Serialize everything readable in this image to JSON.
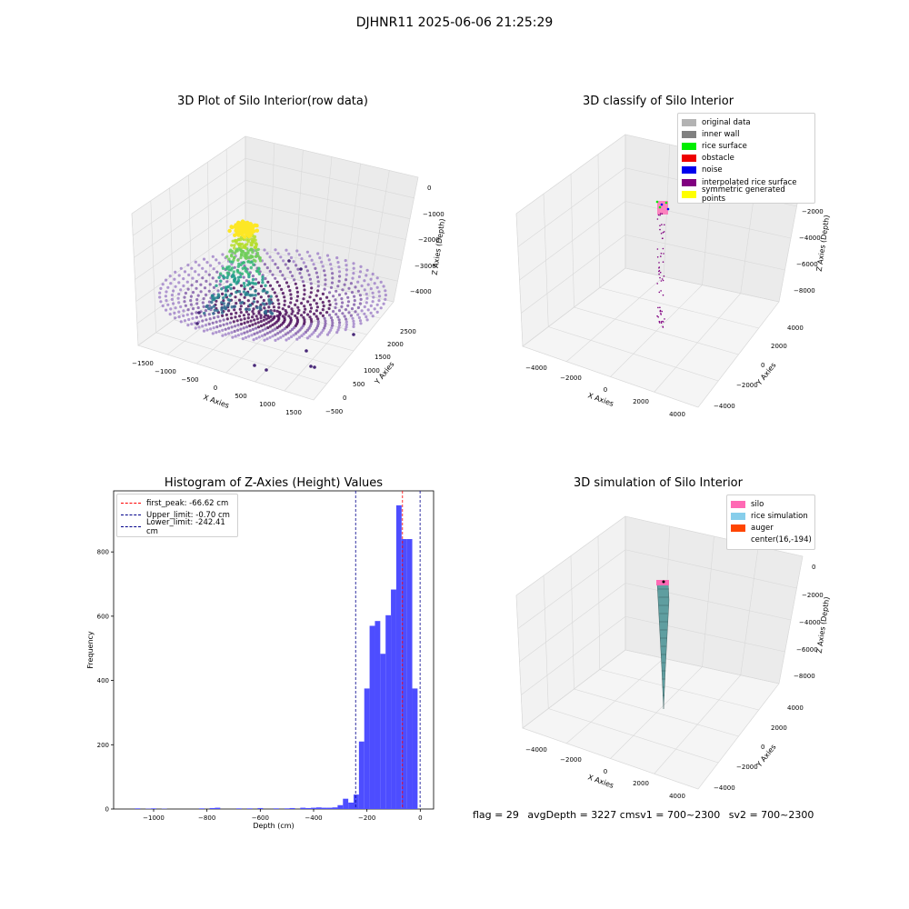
{
  "suptitle": "DJHNR11 2025-06-06 21:25:29",
  "panels": {
    "raw": {
      "title": "3D Plot of Silo Interior(row data)",
      "xlabel": "X Axies",
      "ylabel": "Y Axies",
      "zlabel": "Z Axies (Depth)",
      "xticks": [
        "−1500",
        "−1000",
        "−500",
        "0",
        "500",
        "1000",
        "1500"
      ],
      "yticks": [
        "−500",
        "0",
        "500",
        "1000",
        "1500",
        "2000",
        "2500"
      ],
      "zticks": [
        "0",
        "−1000",
        "−2000",
        "−3000",
        "−4000"
      ]
    },
    "classify": {
      "title": "3D classify of Silo Interior",
      "xlabel": "X Axies",
      "ylabel": "Y Axies",
      "zlabel": "Z Axies (Depth)",
      "xticks": [
        "−4000",
        "−2000",
        "0",
        "2000",
        "4000"
      ],
      "yticks": [
        "−4000",
        "−2000",
        "0",
        "2000",
        "4000"
      ],
      "zticks": [
        "0",
        "−2000",
        "−4000",
        "−6000",
        "−8000"
      ],
      "legend": [
        {
          "label": "original data",
          "color": "#b3b3b3"
        },
        {
          "label": "inner wall",
          "color": "#808080"
        },
        {
          "label": "rice surface",
          "color": "#00ee00"
        },
        {
          "label": "obstacle",
          "color": "#ee0000"
        },
        {
          "label": "noise",
          "color": "#0000ee"
        },
        {
          "label": "interpolated rice surface",
          "color": "#800080"
        },
        {
          "label": "symmetric generated points",
          "color": "#ffff00"
        }
      ]
    },
    "histogram": {
      "title": "Histogram of Z-Axies (Height) Values",
      "xlabel": "Depth (cm)",
      "ylabel": "Frequency",
      "legend": [
        {
          "label": "first_peak: -66.62 cm",
          "color": "#ff0000"
        },
        {
          "label": "Upper_limit: -0.70 cm",
          "color": "#00008b"
        },
        {
          "label": "Lower_limit: -242.41 cm",
          "color": "#00008b"
        }
      ]
    },
    "simulation": {
      "title": "3D simulation of Silo Interior",
      "xlabel": "X Axies",
      "ylabel": "Y Axies",
      "zlabel": "Z Axies (Depth)",
      "xticks": [
        "−4000",
        "−2000",
        "0",
        "2000",
        "4000"
      ],
      "yticks": [
        "−4000",
        "−2000",
        "0",
        "2000",
        "4000"
      ],
      "zticks": [
        "0",
        "−2000",
        "−4000",
        "−6000",
        "−8000"
      ],
      "legend": [
        {
          "label": "silo",
          "color": "#ff69b4"
        },
        {
          "label": "rice simulation",
          "color": "#87ceeb"
        },
        {
          "label": "auger",
          "color": "#ff4500"
        },
        {
          "label": "center(16,-194)",
          "color": ""
        }
      ]
    }
  },
  "footer": {
    "flag": "flag = 29",
    "avg": "avgDepth = 3227 cmsv1 = 700~2300",
    "sv2": "sv2 = 700~2300"
  },
  "chart_data": [
    {
      "type": "scatter",
      "title": "3D Plot of Silo Interior(row data)",
      "xlabel": "X Axies",
      "ylabel": "Y Axies",
      "zlabel": "Z Axies (Depth)",
      "xlim": [
        -1600,
        1700
      ],
      "ylim": [
        -600,
        2700
      ],
      "zlim": [
        -4500,
        0
      ],
      "colormap": "viridis",
      "grid": true
    },
    {
      "type": "scatter",
      "title": "3D classify of Silo Interior",
      "xlabel": "X Axies",
      "ylabel": "Y Axies",
      "zlabel": "Z Axies (Depth)",
      "xlim": [
        -4500,
        4500
      ],
      "ylim": [
        -4500,
        4500
      ],
      "zlim": [
        -9000,
        0
      ],
      "legend_position": "top-right",
      "grid": true
    },
    {
      "type": "bar",
      "title": "Histogram of Z-Axies (Height) Values",
      "xlabel": "Depth (cm)",
      "ylabel": "Frequency",
      "xlim": [
        -1150,
        50
      ],
      "ylim": [
        0,
        990
      ],
      "xticks": [
        -1000,
        -800,
        -600,
        -400,
        -200,
        0
      ],
      "yticks": [
        0,
        200,
        400,
        600,
        800
      ],
      "bin_width": 20,
      "bins": [
        {
          "x": -1060,
          "y": 2
        },
        {
          "x": -1020,
          "y": 1
        },
        {
          "x": -1000,
          "y": 2
        },
        {
          "x": -960,
          "y": 1
        },
        {
          "x": -820,
          "y": 2
        },
        {
          "x": -780,
          "y": 3
        },
        {
          "x": -760,
          "y": 4
        },
        {
          "x": -680,
          "y": 2
        },
        {
          "x": -640,
          "y": 2
        },
        {
          "x": -600,
          "y": 3
        },
        {
          "x": -540,
          "y": 2
        },
        {
          "x": -500,
          "y": 2
        },
        {
          "x": -480,
          "y": 3
        },
        {
          "x": -440,
          "y": 4
        },
        {
          "x": -420,
          "y": 3
        },
        {
          "x": -400,
          "y": 4
        },
        {
          "x": -380,
          "y": 5
        },
        {
          "x": -360,
          "y": 4
        },
        {
          "x": -340,
          "y": 4
        },
        {
          "x": -320,
          "y": 5
        },
        {
          "x": -300,
          "y": 12
        },
        {
          "x": -280,
          "y": 32
        },
        {
          "x": -260,
          "y": 20
        },
        {
          "x": -240,
          "y": 45
        },
        {
          "x": -220,
          "y": 210
        },
        {
          "x": -200,
          "y": 375
        },
        {
          "x": -180,
          "y": 570
        },
        {
          "x": -160,
          "y": 585
        },
        {
          "x": -140,
          "y": 483
        },
        {
          "x": -120,
          "y": 603
        },
        {
          "x": -100,
          "y": 683
        },
        {
          "x": -80,
          "y": 945
        },
        {
          "x": -60,
          "y": 840
        },
        {
          "x": -40,
          "y": 840
        },
        {
          "x": -20,
          "y": 375
        }
      ],
      "vlines": [
        {
          "x": -66.62,
          "label": "first_peak: -66.62 cm",
          "color": "#ff0000"
        },
        {
          "x": -0.7,
          "label": "Upper_limit: -0.70 cm",
          "color": "#00008b"
        },
        {
          "x": -242.41,
          "label": "Lower_limit: -242.41 cm",
          "color": "#00008b"
        }
      ],
      "bar_color": "#4d4dff",
      "legend_position": "top-left"
    },
    {
      "type": "area",
      "title": "3D simulation of Silo Interior",
      "xlabel": "X Axies",
      "ylabel": "Y Axies",
      "zlabel": "Z Axies (Depth)",
      "xlim": [
        -4500,
        4500
      ],
      "ylim": [
        -4500,
        4500
      ],
      "zlim": [
        -9000,
        0
      ],
      "legend_position": "top-right",
      "grid": true
    }
  ]
}
